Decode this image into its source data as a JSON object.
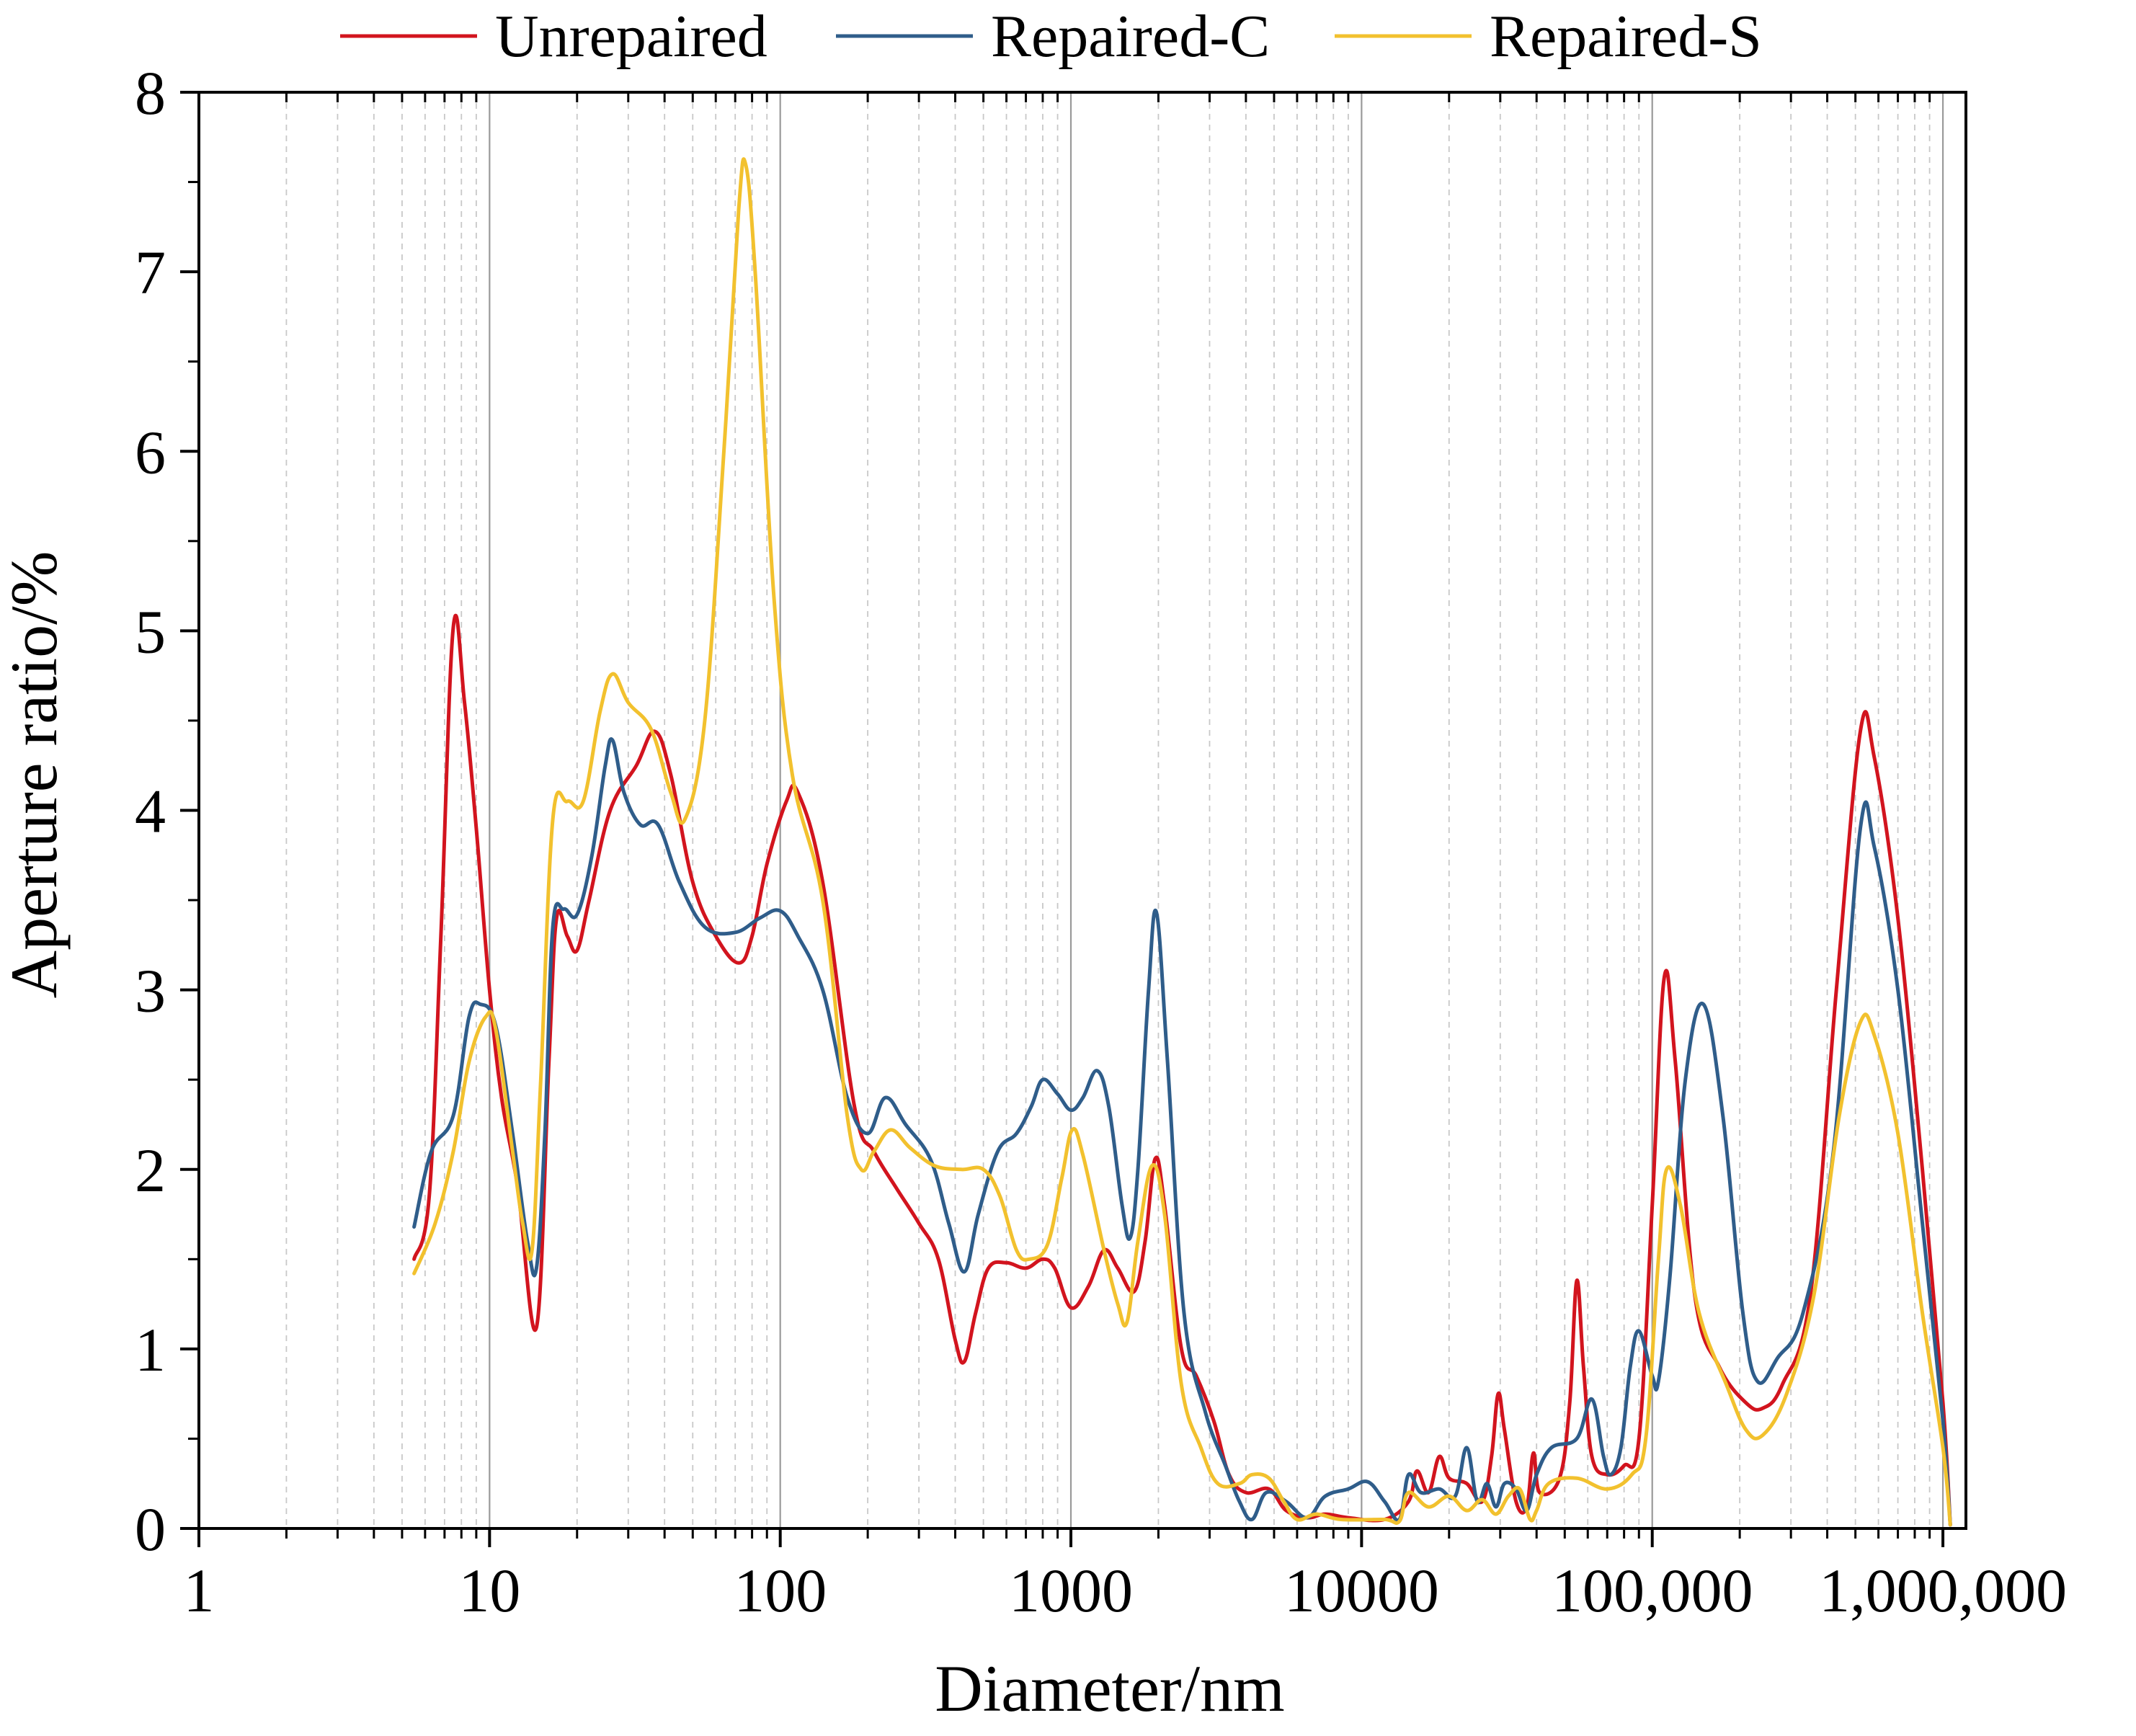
{
  "chart_data": {
    "type": "line",
    "xscale": "log",
    "xlabel": "Diameter/nm",
    "ylabel": "Aperture ratio/%",
    "xlim": [
      1,
      1200000
    ],
    "ylim": [
      0,
      8
    ],
    "x_ticks": [
      {
        "value": 1,
        "label": "1"
      },
      {
        "value": 10,
        "label": "10"
      },
      {
        "value": 100,
        "label": "100"
      },
      {
        "value": 1000,
        "label": "1000"
      },
      {
        "value": 10000,
        "label": "10000"
      },
      {
        "value": 100000,
        "label": "100,000"
      },
      {
        "value": 1000000,
        "label": "1,000,000"
      }
    ],
    "y_ticks": [
      {
        "value": 0,
        "label": "0"
      },
      {
        "value": 1,
        "label": "1"
      },
      {
        "value": 2,
        "label": "2"
      },
      {
        "value": 3,
        "label": "3"
      },
      {
        "value": 4,
        "label": "4"
      },
      {
        "value": 5,
        "label": "5"
      },
      {
        "value": 6,
        "label": "6"
      },
      {
        "value": 7,
        "label": "7"
      },
      {
        "value": 8,
        "label": "8"
      }
    ],
    "grid": {
      "major_x": true,
      "minor_x": true,
      "y": false
    },
    "legend": {
      "position": "top"
    },
    "series": [
      {
        "name": "Unrepaired",
        "color": "#d2141e",
        "points": [
          [
            5.5,
            1.5
          ],
          [
            6.2,
            1.85
          ],
          [
            6.8,
            3.3
          ],
          [
            7.5,
            5.02
          ],
          [
            8.2,
            4.6
          ],
          [
            9.0,
            3.9
          ],
          [
            10,
            3.0
          ],
          [
            11,
            2.4
          ],
          [
            12.5,
            1.9
          ],
          [
            14.5,
            1.12
          ],
          [
            16,
            2.6
          ],
          [
            17,
            3.4
          ],
          [
            18.5,
            3.3
          ],
          [
            20,
            3.22
          ],
          [
            22,
            3.5
          ],
          [
            26,
            4.0
          ],
          [
            32,
            4.25
          ],
          [
            37,
            4.44
          ],
          [
            42,
            4.2
          ],
          [
            50,
            3.6
          ],
          [
            60,
            3.3
          ],
          [
            72,
            3.15
          ],
          [
            80,
            3.3
          ],
          [
            90,
            3.7
          ],
          [
            105,
            4.05
          ],
          [
            115,
            4.1
          ],
          [
            140,
            3.6
          ],
          [
            180,
            2.35
          ],
          [
            210,
            2.1
          ],
          [
            250,
            1.9
          ],
          [
            300,
            1.7
          ],
          [
            350,
            1.5
          ],
          [
            400,
            1.05
          ],
          [
            430,
            0.93
          ],
          [
            470,
            1.2
          ],
          [
            520,
            1.45
          ],
          [
            600,
            1.48
          ],
          [
            700,
            1.45
          ],
          [
            800,
            1.5
          ],
          [
            880,
            1.45
          ],
          [
            1000,
            1.23
          ],
          [
            1150,
            1.35
          ],
          [
            1300,
            1.55
          ],
          [
            1450,
            1.45
          ],
          [
            1650,
            1.32
          ],
          [
            1800,
            1.6
          ],
          [
            1950,
            2.06
          ],
          [
            2100,
            1.8
          ],
          [
            2400,
            1.0
          ],
          [
            2700,
            0.85
          ],
          [
            3100,
            0.6
          ],
          [
            3500,
            0.3
          ],
          [
            4000,
            0.2
          ],
          [
            4800,
            0.22
          ],
          [
            5500,
            0.1
          ],
          [
            6500,
            0.06
          ],
          [
            7500,
            0.08
          ],
          [
            9000,
            0.06
          ],
          [
            12000,
            0.05
          ],
          [
            14500,
            0.15
          ],
          [
            15500,
            0.32
          ],
          [
            17000,
            0.2
          ],
          [
            18500,
            0.4
          ],
          [
            20000,
            0.28
          ],
          [
            23000,
            0.25
          ],
          [
            26000,
            0.15
          ],
          [
            28000,
            0.4
          ],
          [
            29500,
            0.75
          ],
          [
            31000,
            0.55
          ],
          [
            34000,
            0.15
          ],
          [
            37000,
            0.12
          ],
          [
            39000,
            0.42
          ],
          [
            41000,
            0.2
          ],
          [
            48000,
            0.28
          ],
          [
            52000,
            0.7
          ],
          [
            55000,
            1.38
          ],
          [
            58000,
            0.9
          ],
          [
            62000,
            0.4
          ],
          [
            70000,
            0.3
          ],
          [
            80000,
            0.35
          ],
          [
            90000,
            0.5
          ],
          [
            100000,
            1.8
          ],
          [
            110000,
            3.07
          ],
          [
            120000,
            2.6
          ],
          [
            140000,
            1.3
          ],
          [
            170000,
            0.9
          ],
          [
            210000,
            0.7
          ],
          [
            240000,
            0.67
          ],
          [
            280000,
            0.8
          ],
          [
            350000,
            1.3
          ],
          [
            430000,
            3.0
          ],
          [
            520000,
            4.44
          ],
          [
            580000,
            4.3
          ],
          [
            700000,
            3.4
          ],
          [
            850000,
            2.0
          ],
          [
            1000000,
            0.7
          ],
          [
            1060000,
            0.02
          ]
        ]
      },
      {
        "name": "Repaired-C",
        "color": "#2f5d8a",
        "points": [
          [
            5.5,
            1.68
          ],
          [
            6.3,
            2.1
          ],
          [
            7.5,
            2.3
          ],
          [
            8.5,
            2.85
          ],
          [
            9.3,
            2.92
          ],
          [
            10.5,
            2.8
          ],
          [
            12,
            2.2
          ],
          [
            13.5,
            1.6
          ],
          [
            14.5,
            1.45
          ],
          [
            15.5,
            2.2
          ],
          [
            16.5,
            3.35
          ],
          [
            18,
            3.45
          ],
          [
            20,
            3.42
          ],
          [
            22.5,
            3.75
          ],
          [
            25,
            4.25
          ],
          [
            26.5,
            4.39
          ],
          [
            29,
            4.1
          ],
          [
            33,
            3.92
          ],
          [
            38,
            3.92
          ],
          [
            45,
            3.6
          ],
          [
            55,
            3.35
          ],
          [
            70,
            3.32
          ],
          [
            85,
            3.4
          ],
          [
            100,
            3.44
          ],
          [
            115,
            3.3
          ],
          [
            140,
            3.0
          ],
          [
            170,
            2.4
          ],
          [
            200,
            2.2
          ],
          [
            230,
            2.4
          ],
          [
            270,
            2.25
          ],
          [
            330,
            2.05
          ],
          [
            380,
            1.7
          ],
          [
            430,
            1.43
          ],
          [
            480,
            1.75
          ],
          [
            560,
            2.1
          ],
          [
            650,
            2.2
          ],
          [
            730,
            2.35
          ],
          [
            800,
            2.5
          ],
          [
            900,
            2.42
          ],
          [
            1000,
            2.33
          ],
          [
            1100,
            2.4
          ],
          [
            1230,
            2.55
          ],
          [
            1350,
            2.35
          ],
          [
            1500,
            1.8
          ],
          [
            1600,
            1.62
          ],
          [
            1700,
            2.0
          ],
          [
            1850,
            3.0
          ],
          [
            1970,
            3.43
          ],
          [
            2150,
            2.6
          ],
          [
            2450,
            1.2
          ],
          [
            2900,
            0.65
          ],
          [
            3400,
            0.35
          ],
          [
            3800,
            0.15
          ],
          [
            4200,
            0.05
          ],
          [
            4700,
            0.2
          ],
          [
            5500,
            0.15
          ],
          [
            6500,
            0.06
          ],
          [
            7500,
            0.18
          ],
          [
            9000,
            0.22
          ],
          [
            10500,
            0.26
          ],
          [
            12000,
            0.15
          ],
          [
            13500,
            0.05
          ],
          [
            14500,
            0.3
          ],
          [
            16000,
            0.2
          ],
          [
            18500,
            0.22
          ],
          [
            21000,
            0.18
          ],
          [
            23000,
            0.45
          ],
          [
            25000,
            0.15
          ],
          [
            27000,
            0.25
          ],
          [
            29000,
            0.12
          ],
          [
            31000,
            0.25
          ],
          [
            34000,
            0.22
          ],
          [
            37000,
            0.1
          ],
          [
            40000,
            0.3
          ],
          [
            45000,
            0.45
          ],
          [
            55000,
            0.5
          ],
          [
            62000,
            0.72
          ],
          [
            68000,
            0.4
          ],
          [
            72000,
            0.3
          ],
          [
            78000,
            0.45
          ],
          [
            84000,
            0.9
          ],
          [
            90000,
            1.1
          ],
          [
            100000,
            0.85
          ],
          [
            105000,
            0.82
          ],
          [
            115000,
            1.4
          ],
          [
            130000,
            2.5
          ],
          [
            150000,
            2.92
          ],
          [
            175000,
            2.3
          ],
          [
            205000,
            1.2
          ],
          [
            230000,
            0.82
          ],
          [
            270000,
            0.95
          ],
          [
            330000,
            1.2
          ],
          [
            420000,
            2.1
          ],
          [
            520000,
            3.9
          ],
          [
            580000,
            3.8
          ],
          [
            700000,
            3.0
          ],
          [
            850000,
            1.7
          ],
          [
            1000000,
            0.6
          ],
          [
            1060000,
            0.02
          ]
        ]
      },
      {
        "name": "Repaired-S",
        "color": "#f2c12e",
        "points": [
          [
            5.5,
            1.42
          ],
          [
            6.5,
            1.7
          ],
          [
            7.5,
            2.1
          ],
          [
            8.5,
            2.6
          ],
          [
            9.7,
            2.85
          ],
          [
            10.5,
            2.78
          ],
          [
            12,
            2.1
          ],
          [
            13,
            1.7
          ],
          [
            14,
            1.55
          ],
          [
            15,
            2.5
          ],
          [
            16.5,
            3.95
          ],
          [
            18.5,
            4.05
          ],
          [
            21,
            4.05
          ],
          [
            24,
            4.55
          ],
          [
            26.5,
            4.76
          ],
          [
            30,
            4.6
          ],
          [
            36,
            4.45
          ],
          [
            42,
            4.1
          ],
          [
            47,
            3.95
          ],
          [
            55,
            4.5
          ],
          [
            64,
            6.0
          ],
          [
            72,
            7.35
          ],
          [
            76,
            7.6
          ],
          [
            82,
            7.0
          ],
          [
            95,
            5.2
          ],
          [
            110,
            4.2
          ],
          [
            140,
            3.5
          ],
          [
            170,
            2.3
          ],
          [
            190,
            2.0
          ],
          [
            210,
            2.1
          ],
          [
            240,
            2.22
          ],
          [
            280,
            2.12
          ],
          [
            340,
            2.02
          ],
          [
            420,
            2.0
          ],
          [
            500,
            2.0
          ],
          [
            570,
            1.85
          ],
          [
            650,
            1.55
          ],
          [
            720,
            1.5
          ],
          [
            830,
            1.58
          ],
          [
            930,
            1.95
          ],
          [
            1010,
            2.22
          ],
          [
            1100,
            2.08
          ],
          [
            1300,
            1.55
          ],
          [
            1450,
            1.25
          ],
          [
            1560,
            1.15
          ],
          [
            1700,
            1.6
          ],
          [
            1900,
            2.02
          ],
          [
            2100,
            1.75
          ],
          [
            2400,
            0.8
          ],
          [
            2800,
            0.45
          ],
          [
            3200,
            0.25
          ],
          [
            3800,
            0.25
          ],
          [
            4200,
            0.3
          ],
          [
            4800,
            0.28
          ],
          [
            5400,
            0.15
          ],
          [
            6000,
            0.05
          ],
          [
            7000,
            0.08
          ],
          [
            8500,
            0.05
          ],
          [
            12000,
            0.05
          ],
          [
            13500,
            0.04
          ],
          [
            14500,
            0.2
          ],
          [
            17000,
            0.12
          ],
          [
            20000,
            0.18
          ],
          [
            23000,
            0.1
          ],
          [
            26000,
            0.16
          ],
          [
            29000,
            0.08
          ],
          [
            32000,
            0.18
          ],
          [
            35000,
            0.22
          ],
          [
            38000,
            0.05
          ],
          [
            40000,
            0.1
          ],
          [
            44000,
            0.25
          ],
          [
            55000,
            0.28
          ],
          [
            70000,
            0.22
          ],
          [
            85000,
            0.3
          ],
          [
            95000,
            0.5
          ],
          [
            105000,
            1.5
          ],
          [
            112000,
            2.0
          ],
          [
            125000,
            1.8
          ],
          [
            145000,
            1.2
          ],
          [
            180000,
            0.8
          ],
          [
            210000,
            0.55
          ],
          [
            240000,
            0.52
          ],
          [
            290000,
            0.75
          ],
          [
            360000,
            1.3
          ],
          [
            440000,
            2.3
          ],
          [
            520000,
            2.82
          ],
          [
            580000,
            2.75
          ],
          [
            700000,
            2.2
          ],
          [
            850000,
            1.2
          ],
          [
            1000000,
            0.45
          ],
          [
            1060000,
            0.02
          ]
        ]
      }
    ]
  }
}
